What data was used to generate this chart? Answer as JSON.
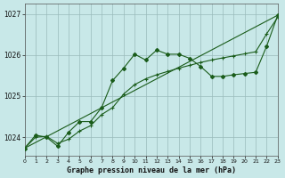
{
  "title": "Graphe pression niveau de la mer (hPa)",
  "bg_color": "#c8e8e8",
  "grid_color": "#99bbbb",
  "line_color": "#1a5c1a",
  "xlim": [
    0,
    23
  ],
  "ylim": [
    1023.55,
    1027.25
  ],
  "yticks": [
    1024,
    1025,
    1026,
    1027
  ],
  "xticks": [
    0,
    1,
    2,
    3,
    4,
    5,
    6,
    7,
    8,
    9,
    10,
    11,
    12,
    13,
    14,
    15,
    16,
    17,
    18,
    19,
    20,
    21,
    22,
    23
  ],
  "wavy_x": [
    0,
    1,
    2,
    3,
    4,
    5,
    6,
    7,
    8,
    9,
    10,
    11,
    12,
    13,
    14,
    15,
    16,
    17,
    18,
    19,
    20,
    21,
    22,
    23
  ],
  "wavy_y": [
    1023.73,
    1024.05,
    1024.0,
    1023.78,
    1024.12,
    1024.38,
    1024.38,
    1024.72,
    1025.38,
    1025.68,
    1026.02,
    1025.88,
    1026.12,
    1026.02,
    1026.02,
    1025.92,
    1025.72,
    1025.48,
    1025.48,
    1025.52,
    1025.55,
    1025.58,
    1026.22,
    1026.97
  ],
  "smooth_x": [
    0,
    1,
    2,
    3,
    4,
    5,
    6,
    7,
    8,
    9,
    10,
    11,
    12,
    13,
    14,
    15,
    16,
    17,
    18,
    19,
    20,
    21,
    22,
    23
  ],
  "smooth_y": [
    1023.73,
    1024.0,
    1024.02,
    1023.85,
    1023.95,
    1024.15,
    1024.28,
    1024.55,
    1024.72,
    1025.05,
    1025.28,
    1025.42,
    1025.52,
    1025.6,
    1025.68,
    1025.75,
    1025.82,
    1025.88,
    1025.93,
    1025.98,
    1026.03,
    1026.08,
    1026.52,
    1026.92
  ],
  "trend_x": [
    0,
    23
  ],
  "trend_y": [
    1023.73,
    1026.97
  ]
}
